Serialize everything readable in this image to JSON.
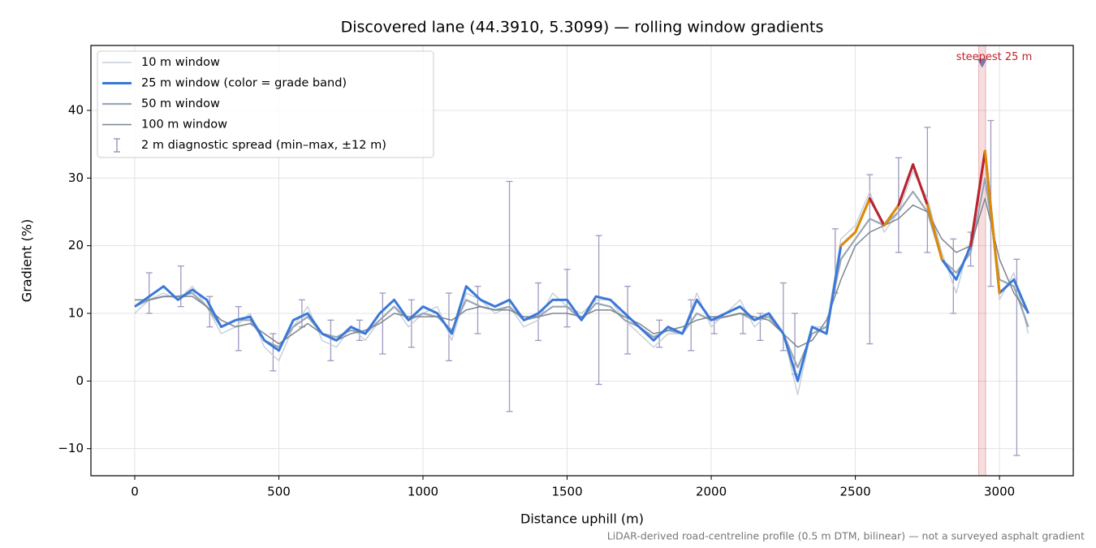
{
  "chart_data": {
    "type": "line",
    "title": "Discovered lane (44.3910, 5.3099) — rolling window gradients",
    "x_label": "Distance uphill (m)",
    "y_label": "Gradient (%)",
    "footnote": "LiDAR-derived road-centreline profile (0.5 m DTM, bilinear) — not a surveyed asphalt gradient",
    "xlim": [
      -152,
      3256
    ],
    "ylim": [
      -14,
      49.6
    ],
    "xticks": [
      0,
      500,
      1000,
      1500,
      2000,
      2500,
      3000
    ],
    "yticks": [
      {
        "value": -10,
        "label": "−10"
      },
      0,
      10,
      20,
      30,
      40
    ],
    "grid": true,
    "legend": "upper left",
    "x": [
      0,
      50,
      100,
      150,
      200,
      250,
      300,
      350,
      400,
      450,
      500,
      550,
      600,
      650,
      700,
      750,
      800,
      850,
      900,
      950,
      1000,
      1050,
      1100,
      1150,
      1200,
      1250,
      1300,
      1350,
      1400,
      1450,
      1500,
      1550,
      1600,
      1650,
      1700,
      1750,
      1800,
      1850,
      1900,
      1950,
      2000,
      2050,
      2100,
      2150,
      2200,
      2250,
      2300,
      2350,
      2400,
      2450,
      2500,
      2550,
      2600,
      2650,
      2700,
      2750,
      2800,
      2850,
      2900,
      2950,
      3000,
      3050,
      3100
    ],
    "series": [
      {
        "name": "10 m window",
        "color": "#c5cdd8",
        "width": 1.4,
        "values": [
          10,
          12,
          13,
          12,
          14,
          11,
          7,
          8,
          10,
          5,
          3,
          8,
          11,
          6,
          5,
          8,
          6,
          9,
          11,
          8,
          10,
          11,
          6,
          13,
          12,
          10,
          11,
          8,
          9,
          13,
          11,
          10,
          12,
          12,
          9,
          7,
          5,
          7,
          7,
          13,
          8,
          10,
          12,
          8,
          10,
          7,
          -2,
          8,
          8,
          21,
          23,
          28,
          22,
          25,
          31,
          27,
          19,
          13,
          21,
          33,
          12,
          16,
          7
        ]
      },
      {
        "name": "25 m window (color = grade band)",
        "color": "#3a78d8",
        "width": 3,
        "bands": [
          {
            "from": 20,
            "color": "#e08a00"
          },
          {
            "from": 25,
            "color": "#c0202a"
          }
        ],
        "values": [
          11,
          12.5,
          14,
          12,
          13.5,
          12,
          8,
          9,
          9.5,
          6,
          4.5,
          9,
          10,
          7,
          6,
          8,
          7,
          10,
          12,
          9,
          11,
          10,
          7,
          14,
          12,
          11,
          12,
          9,
          10,
          12,
          12,
          9,
          12.5,
          12,
          10,
          8,
          6,
          8,
          7,
          12,
          9,
          10,
          11,
          9,
          10,
          7,
          0,
          8,
          7,
          20,
          22,
          27,
          23,
          26,
          32,
          26,
          18,
          15,
          20,
          34,
          13,
          15,
          10
        ]
      },
      {
        "name": "50 m window",
        "color": "#9aa6b4",
        "width": 2.2,
        "values": [
          11,
          12,
          12.5,
          12.5,
          13,
          11,
          8,
          9,
          9,
          6,
          5,
          8,
          9.5,
          7,
          6.5,
          7.5,
          7,
          9,
          11,
          9,
          10,
          9.5,
          7.5,
          12,
          11,
          10.5,
          11,
          9,
          9.5,
          11,
          11,
          9,
          11.5,
          11,
          9,
          8,
          6.5,
          7.5,
          7,
          10,
          9,
          9.5,
          10,
          9,
          9.5,
          7,
          2,
          7,
          8,
          18,
          21,
          24,
          23,
          25,
          28,
          25,
          18,
          16,
          19,
          30,
          15,
          14,
          8
        ]
      },
      {
        "name": "100 m window",
        "color": "#7d8591",
        "width": 1.5,
        "values": [
          12,
          12,
          12.5,
          12.5,
          12.5,
          11,
          9,
          8,
          8.5,
          7,
          5.5,
          7,
          8.5,
          7,
          6,
          7,
          7.5,
          8.5,
          10,
          9.5,
          9.5,
          9.5,
          9,
          10.5,
          11,
          10.5,
          10.5,
          9.5,
          9.5,
          10,
          10,
          9.5,
          10.5,
          10.5,
          9.5,
          8.5,
          7,
          7.5,
          8,
          9,
          9.5,
          9.5,
          10,
          9.5,
          9,
          7,
          5,
          6,
          9,
          15,
          20,
          22,
          23,
          24,
          26,
          25,
          21,
          19,
          20,
          27,
          18,
          13,
          10
        ]
      }
    ],
    "spread": {
      "name": "2 m diagnostic spread (min–max, ±12 m)",
      "color": "#9e99bf",
      "x": [
        50,
        160,
        260,
        360,
        480,
        580,
        680,
        780,
        860,
        960,
        1090,
        1190,
        1300,
        1400,
        1500,
        1610,
        1710,
        1820,
        1930,
        2010,
        2110,
        2170,
        2250,
        2290,
        2430,
        2550,
        2650,
        2750,
        2840,
        2900,
        2970,
        3060
      ],
      "min": [
        10,
        11,
        8,
        4.5,
        1.5,
        8,
        3,
        6,
        4,
        5,
        3,
        7,
        -4.5,
        6,
        8,
        -0.5,
        4,
        5,
        4.5,
        7,
        7,
        6,
        4.5,
        1,
        13,
        5.5,
        19,
        19,
        10,
        17,
        14,
        -11
      ],
      "max": [
        16,
        17,
        12.5,
        11,
        7,
        12,
        9,
        9,
        13,
        12,
        13,
        14,
        29.5,
        14.5,
        16.5,
        21.5,
        14,
        9,
        12,
        9,
        10,
        10,
        14.5,
        10,
        22.5,
        30.5,
        33,
        37.5,
        21,
        22,
        38.5,
        18
      ]
    },
    "steepest": {
      "label": "steepest 25 m",
      "x": 2940,
      "y": 47,
      "band": [
        2928,
        2952
      ],
      "color": "#c0202a"
    }
  }
}
